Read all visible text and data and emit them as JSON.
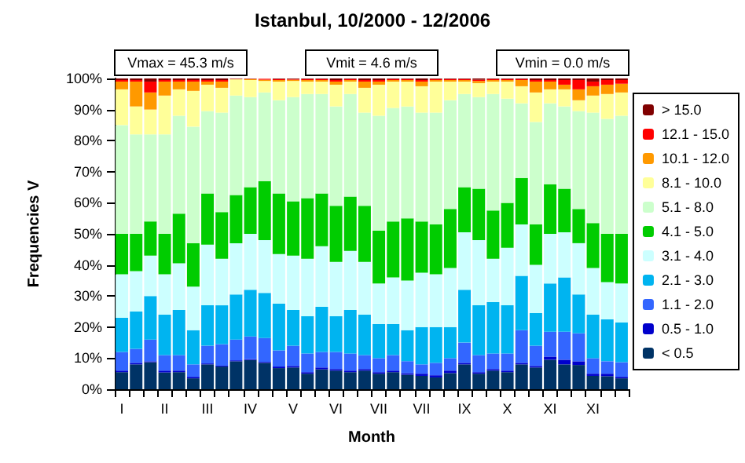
{
  "chart_data": {
    "type": "bar",
    "stacked": true,
    "title": "Istanbul, 10/2000 - 12/2006",
    "xlabel": "Month",
    "ylabel": "Frequencies V",
    "annotations": [
      "Vmax = 45.3 m/s",
      "Vmit = 4.6 m/s",
      "Vmin = 0.0 m/s"
    ],
    "categories": [
      "I",
      null,
      null,
      "II",
      null,
      null,
      "III",
      null,
      null,
      "IV",
      null,
      null,
      "V",
      null,
      null,
      "VI",
      null,
      null,
      "VII",
      null,
      null,
      "VII",
      null,
      null,
      "IX",
      null,
      null,
      "X",
      null,
      null,
      "XI",
      null,
      null,
      "XI",
      null,
      null
    ],
    "ylim": [
      0,
      100
    ],
    "yticks": [
      {
        "value": 0,
        "label": "0%"
      },
      {
        "value": 10,
        "label": "10%"
      },
      {
        "value": 20,
        "label": "20%"
      },
      {
        "value": 30,
        "label": "30%"
      },
      {
        "value": 40,
        "label": "40%"
      },
      {
        "value": 50,
        "label": "50%"
      },
      {
        "value": 60,
        "label": "60%"
      },
      {
        "value": 70,
        "label": "70%"
      },
      {
        "value": 80,
        "label": "80%"
      },
      {
        "value": 90,
        "label": "90%"
      },
      {
        "value": 100,
        "label": "100%"
      }
    ],
    "grid": false,
    "legend": "right",
    "series": [
      {
        "name": "< 0.5",
        "color": "#003366",
        "values": [
          5.5,
          8,
          8.7,
          5.4,
          5.5,
          3.5,
          8,
          7.3,
          9,
          9.4,
          8.5,
          6.8,
          7,
          5,
          6.4,
          6,
          5.5,
          6,
          5,
          5.5,
          4.7,
          4.3,
          3.8,
          5.2,
          8,
          5,
          6,
          5.5,
          8,
          7,
          9.5,
          8,
          7.8,
          4.3,
          4.2,
          3.5
        ]
      },
      {
        "name": "0.5 - 1.0",
        "color": "#0000cc",
        "values": [
          0.5,
          0.5,
          0.3,
          0.6,
          0.5,
          0.5,
          0.3,
          0.3,
          0.3,
          0.3,
          0.3,
          0.5,
          0.5,
          0.5,
          0.6,
          0.5,
          0.5,
          0.5,
          0.5,
          0.5,
          0.5,
          0.7,
          0.7,
          0.8,
          0.5,
          0.5,
          0.5,
          0.5,
          0.5,
          0.5,
          1,
          1.5,
          1.2,
          0.7,
          0.8,
          0.5
        ]
      },
      {
        "name": "1.1 - 2.0",
        "color": "#3366ff",
        "values": [
          6,
          4.5,
          7,
          5,
          5,
          4,
          5.7,
          6.9,
          6.7,
          7.3,
          7.7,
          5.2,
          6.5,
          6,
          5,
          5.5,
          5.5,
          4.5,
          4.5,
          5,
          3.8,
          3,
          4,
          4,
          6.5,
          5.5,
          5,
          5.5,
          10.5,
          6.5,
          8,
          9,
          9,
          5,
          4,
          4.7
        ]
      },
      {
        "name": "2.1 - 3.0",
        "color": "#00b4f0",
        "values": [
          11,
          12,
          14,
          13,
          14.5,
          11,
          13,
          12.5,
          14.5,
          15,
          14.5,
          15,
          11.5,
          12,
          14.5,
          11.5,
          14,
          13,
          11,
          10,
          10,
          12,
          11.5,
          10,
          17,
          16,
          16.5,
          15.5,
          17.5,
          10.5,
          15.5,
          17.5,
          12.5,
          14,
          13.5,
          12.8
        ]
      },
      {
        "name": "3.1 - 4.0",
        "color": "#ccffff",
        "values": [
          14,
          13,
          13,
          13,
          15,
          14,
          19.5,
          15,
          16.5,
          18,
          17,
          16,
          17.5,
          18.5,
          19.5,
          17.5,
          19,
          17,
          13,
          15,
          16,
          17.5,
          17,
          19,
          18.5,
          21,
          14,
          18.5,
          16.5,
          15.5,
          16,
          14.5,
          16.5,
          15,
          12,
          12.5
        ]
      },
      {
        "name": "4.1 - 5.0",
        "color": "#00cc00",
        "values": [
          13,
          12,
          11,
          13,
          16,
          14,
          16.5,
          15,
          15.5,
          15,
          19,
          19.5,
          17.5,
          19.5,
          17,
          18,
          17.5,
          18,
          17,
          18,
          20,
          16.5,
          16,
          19,
          14.5,
          16.5,
          15.5,
          14.5,
          15,
          13,
          16,
          14,
          11,
          14.5,
          15.5,
          16
        ]
      },
      {
        "name": "5.1 - 8.0",
        "color": "#ccffcc",
        "values": [
          35,
          32,
          28,
          32,
          31.5,
          37.5,
          26.5,
          32,
          32,
          29,
          28.5,
          30,
          33.5,
          33.5,
          32,
          32,
          33,
          30,
          37,
          36.5,
          36,
          35,
          36,
          35,
          30,
          29.5,
          37.5,
          33.5,
          24,
          33,
          26,
          26.5,
          31.5,
          35.5,
          37,
          38
        ]
      },
      {
        "name": "8.1 - 10.0",
        "color": "#ffff99",
        "values": [
          11.5,
          9,
          8,
          12.5,
          8.5,
          11.5,
          8.5,
          8,
          5.2,
          5.5,
          3.7,
          6,
          5.2,
          4,
          4,
          7,
          4,
          8,
          10,
          8.5,
          8,
          8.5,
          10,
          6,
          4,
          4.5,
          4,
          5.5,
          5.5,
          9.5,
          4.5,
          5.5,
          3.5,
          5.5,
          8,
          7.5
        ]
      },
      {
        "name": "10.1 - 12.0",
        "color": "#ff9900",
        "values": [
          2.5,
          8,
          5.5,
          4.5,
          2.5,
          3,
          1,
          2,
          0.1,
          0.3,
          0.4,
          0.5,
          0.4,
          0.5,
          0.5,
          1,
          0.5,
          2,
          1,
          0.5,
          0.5,
          1.5,
          0.5,
          0.5,
          0.5,
          0.7,
          0.5,
          0.5,
          2,
          3.5,
          2.5,
          1.5,
          3.5,
          3,
          3,
          2.8
        ]
      },
      {
        "name": "12.1 - 15.0",
        "color": "#ff0000",
        "values": [
          0.5,
          0.5,
          3.5,
          0.5,
          0.5,
          0.5,
          0.5,
          0.5,
          0.1,
          0.1,
          0.3,
          0.3,
          0.2,
          0.3,
          0.3,
          0.5,
          0.3,
          0.5,
          0.5,
          0.3,
          0.3,
          0.5,
          0.3,
          0.3,
          0.3,
          0.4,
          0.3,
          0.3,
          0.3,
          0.5,
          0.5,
          1.5,
          3,
          1.5,
          1.5,
          1.2
        ]
      },
      {
        "name": "> 15.0",
        "color": "#800000",
        "values": [
          0.5,
          0.5,
          1,
          0.5,
          0.5,
          0.5,
          0.5,
          0.5,
          0.1,
          0.1,
          null,
          0.2,
          0.2,
          0.2,
          0.2,
          0.5,
          0.2,
          0.5,
          0.5,
          0.2,
          0.2,
          0.5,
          0.2,
          0.2,
          0.2,
          0.4,
          0.2,
          0.2,
          0.2,
          0.5,
          0.5,
          0.5,
          0.5,
          1,
          0.5,
          0.5
        ]
      }
    ]
  }
}
